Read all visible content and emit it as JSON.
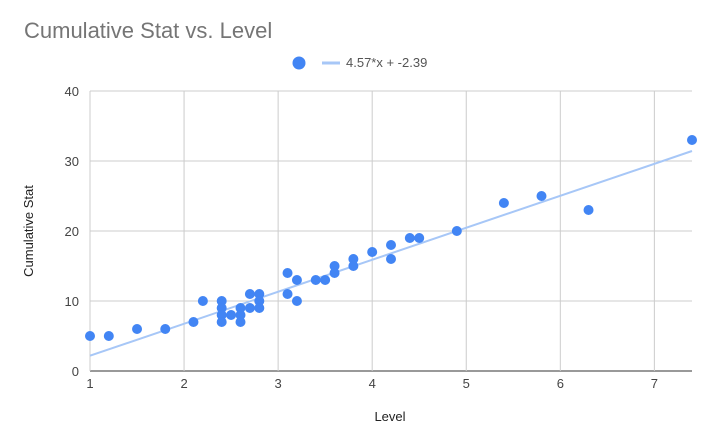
{
  "chart_data": {
    "type": "scatter",
    "title": "Cumulative Stat vs. Level",
    "xlabel": "Level",
    "ylabel": "Cumulative Stat",
    "xlim": [
      1,
      7.4
    ],
    "ylim": [
      0,
      40
    ],
    "x_ticks": [
      1,
      2,
      3,
      4,
      5,
      6,
      7
    ],
    "y_ticks": [
      0,
      10,
      20,
      30,
      40
    ],
    "grid": true,
    "legend_position": "top",
    "series": [
      {
        "name": "",
        "color": "#4285f4",
        "points": [
          [
            1.0,
            5
          ],
          [
            1.2,
            5
          ],
          [
            1.5,
            6
          ],
          [
            1.8,
            6
          ],
          [
            2.1,
            7
          ],
          [
            2.2,
            10
          ],
          [
            2.4,
            10
          ],
          [
            2.4,
            9
          ],
          [
            2.4,
            8
          ],
          [
            2.4,
            7
          ],
          [
            2.5,
            8
          ],
          [
            2.6,
            9
          ],
          [
            2.6,
            8
          ],
          [
            2.6,
            7
          ],
          [
            2.7,
            11
          ],
          [
            2.7,
            9
          ],
          [
            2.8,
            11
          ],
          [
            2.8,
            10
          ],
          [
            2.8,
            9
          ],
          [
            3.1,
            14
          ],
          [
            3.1,
            11
          ],
          [
            3.2,
            13
          ],
          [
            3.2,
            10
          ],
          [
            3.4,
            13
          ],
          [
            3.5,
            13
          ],
          [
            3.6,
            15
          ],
          [
            3.6,
            14
          ],
          [
            3.8,
            16
          ],
          [
            3.8,
            15
          ],
          [
            4.0,
            17
          ],
          [
            4.2,
            18
          ],
          [
            4.2,
            16
          ],
          [
            4.4,
            19
          ],
          [
            4.5,
            19
          ],
          [
            4.9,
            20
          ],
          [
            5.4,
            24
          ],
          [
            5.8,
            25
          ],
          [
            6.3,
            23
          ],
          [
            7.4,
            33
          ]
        ]
      }
    ],
    "trendline": {
      "label": "4.57*x + -2.39",
      "slope": 4.57,
      "intercept": -2.39,
      "color": "#a7c7f7"
    }
  }
}
